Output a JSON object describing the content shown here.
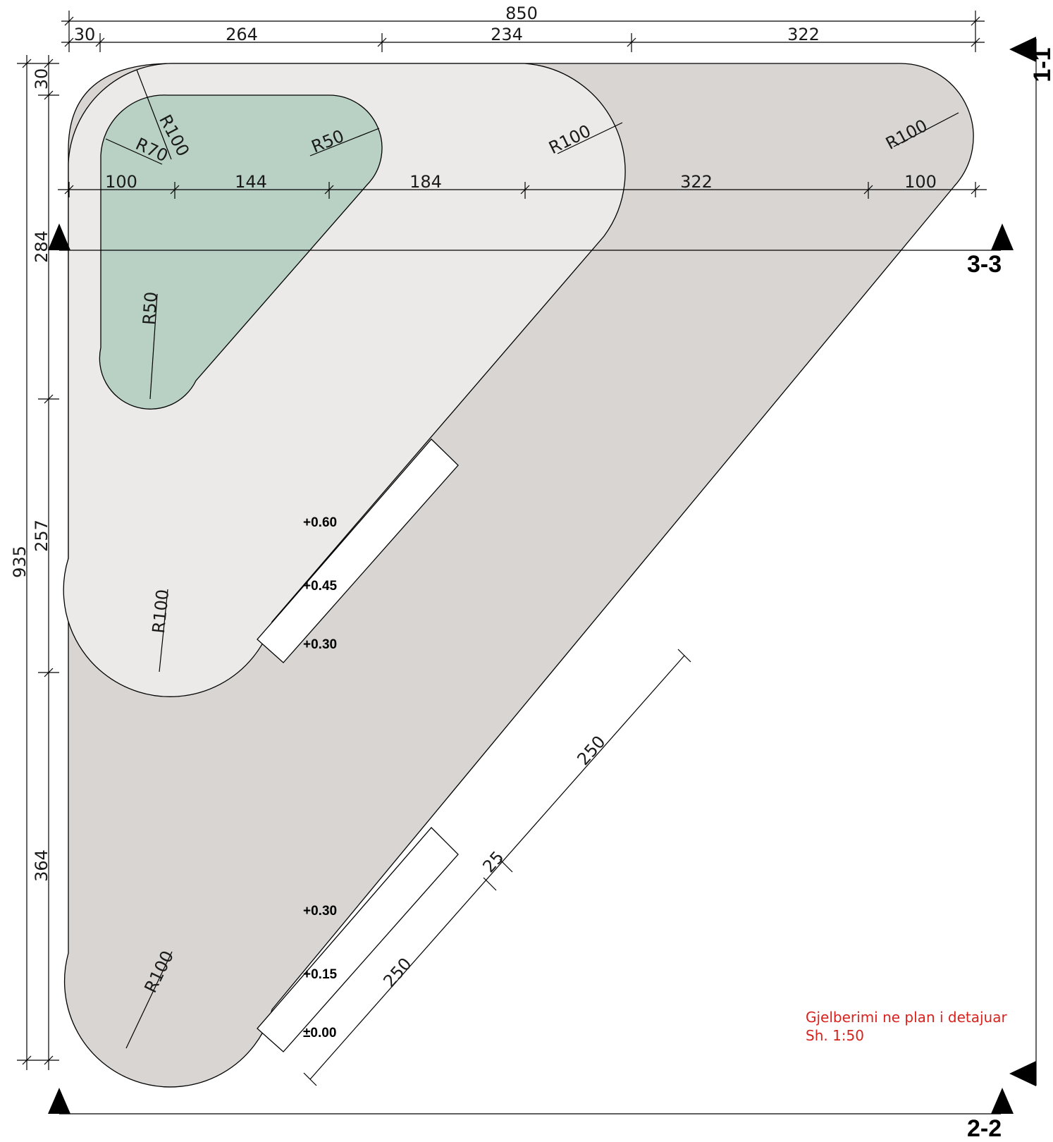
{
  "top_dimensions": {
    "overall": "850",
    "segments": [
      "30",
      "264",
      "234",
      "322"
    ]
  },
  "inner_dimensions": [
    "100",
    "144",
    "184",
    "322",
    "100"
  ],
  "left_dimensions": {
    "overall": "935",
    "segments": [
      "30",
      "284",
      "257",
      "364"
    ]
  },
  "radii": {
    "green_left": "R70",
    "green_corner": "R100",
    "green_right": "R50",
    "green_bottom": "R50",
    "light_top_right": "R100",
    "dark_top_right": "R100",
    "light_bottom_left": "R100",
    "dark_bottom_left": "R100"
  },
  "steps": {
    "upper": [
      "+0.60",
      "+0.45",
      "+0.30"
    ],
    "lower": [
      "+0.30",
      "+0.15",
      "±0.00"
    ]
  },
  "diagonal_dimensions": [
    "250",
    "25",
    "250"
  ],
  "section_labels": {
    "section_1": "1-1",
    "section_2": "2-2",
    "section_3": "3-3"
  },
  "note": {
    "title": "Gjelberimi ne plan i detajuar",
    "scale": "Sh. 1:50",
    "color": "#d7231e"
  },
  "colors": {
    "dark_fill": "#d8d5d2",
    "light_fill": "#ebeae8",
    "green_fill": "#b8d1c4"
  }
}
